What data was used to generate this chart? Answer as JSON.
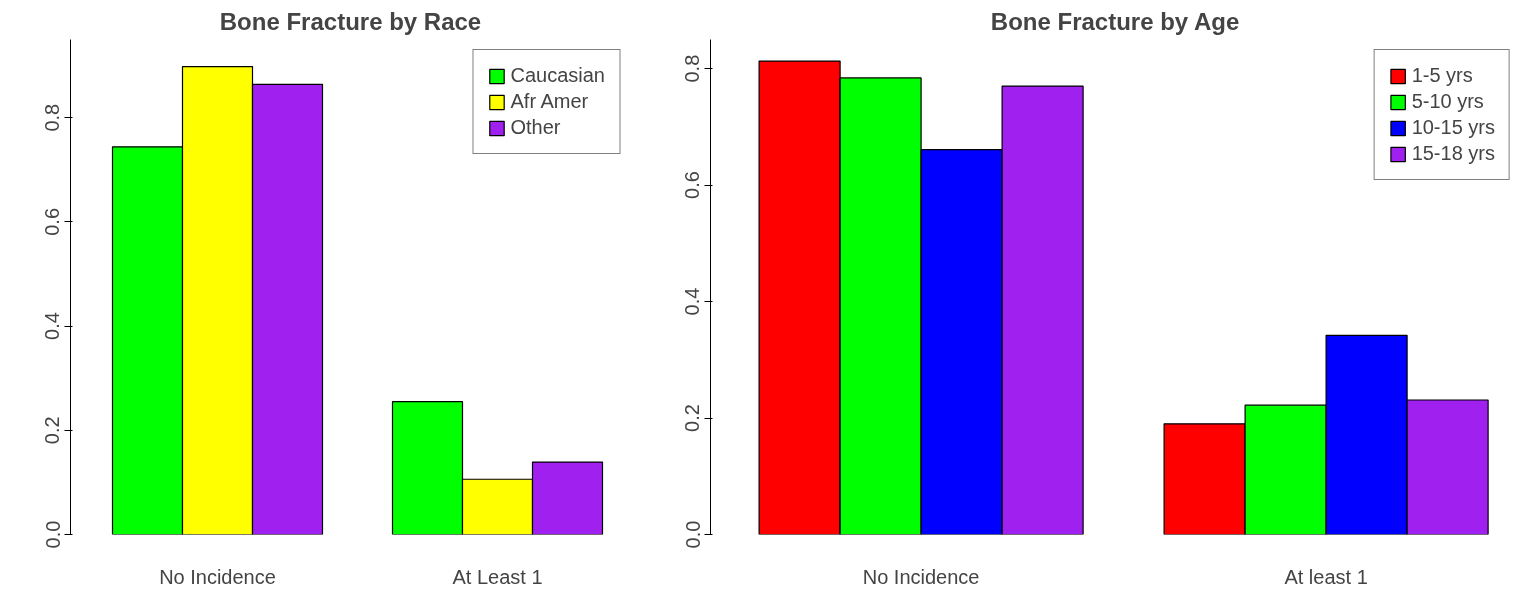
{
  "chart_data": [
    {
      "type": "bar",
      "title": "Bone Fracture by Race",
      "categories": [
        "No Incidence",
        "At Least 1"
      ],
      "series": [
        {
          "name": "Caucasian",
          "color": "#00ff00",
          "values": [
            0.744,
            0.255
          ]
        },
        {
          "name": "Afr Amer",
          "color": "#ffff00",
          "values": [
            0.898,
            0.106
          ]
        },
        {
          "name": "Other",
          "color": "#a020f0",
          "values": [
            0.864,
            0.139
          ]
        }
      ],
      "ylim": [
        0,
        0.95
      ],
      "yticks": [
        {
          "value": 0,
          "label": "0.0"
        },
        0.2,
        0.4,
        0.6,
        0.8
      ],
      "grid": false,
      "legend": "top right"
    },
    {
      "type": "bar",
      "title": "Bone Fracture by Age",
      "categories": [
        "No Incidence",
        "At least 1"
      ],
      "series": [
        {
          "name": "1-5 yrs",
          "color": "#ff0000",
          "values": [
            0.813,
            0.19
          ]
        },
        {
          "name": "5-10 yrs",
          "color": "#00ff00",
          "values": [
            0.784,
            0.222
          ]
        },
        {
          "name": "10-15 yrs",
          "color": "#0000ff",
          "values": [
            0.661,
            0.342
          ]
        },
        {
          "name": "15-18 yrs",
          "color": "#a020f0",
          "values": [
            0.77,
            0.231
          ]
        }
      ],
      "ylim": [
        0,
        0.85
      ],
      "yticks": [
        {
          "value": 0,
          "label": "0.0"
        },
        0.2,
        0.4,
        0.6,
        0.8
      ],
      "grid": false,
      "legend": "top right"
    }
  ]
}
